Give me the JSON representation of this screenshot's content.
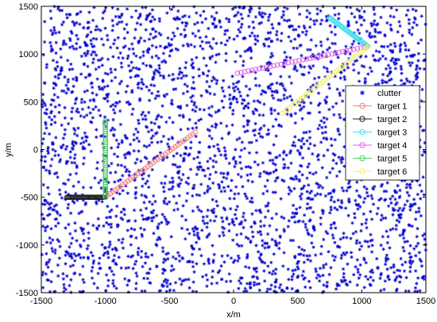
{
  "chart_data": {
    "type": "scatter",
    "xlabel": "x/m",
    "ylabel": "y/m",
    "xlim": [
      -1500,
      1500
    ],
    "ylim": [
      -1500,
      1500
    ],
    "xticks": [
      -1500,
      -1000,
      -500,
      0,
      500,
      1000,
      1500
    ],
    "yticks": [
      -1500,
      -1000,
      -500,
      0,
      500,
      1000,
      1500
    ],
    "x_tick_labels": [
      "-1500",
      "-1000",
      "-500",
      "0",
      "500",
      "1000",
      "1500"
    ],
    "y_tick_labels": [
      "-1500",
      "-1000",
      "-500",
      "0",
      "500",
      "1000",
      "1500"
    ],
    "grid": false,
    "legend_position": "right",
    "clutter": {
      "name": "clutter",
      "marker": "*",
      "color": "#0000cc",
      "count": 3000,
      "distribution": "uniform over axes range"
    },
    "series": [
      {
        "name": "target 1",
        "color": "#f08080",
        "marker": "o",
        "x": [
          -1000,
          -300
        ],
        "y": [
          -500,
          180
        ]
      },
      {
        "name": "target 2",
        "color": "#202020",
        "marker": "o",
        "x": [
          -1300,
          -1000
        ],
        "y": [
          -500,
          -500
        ]
      },
      {
        "name": "target 3",
        "color": "#40e0f0",
        "marker": "o",
        "x": [
          750,
          1050
        ],
        "y": [
          1380,
          1080
        ]
      },
      {
        "name": "target 4",
        "color": "#e060e0",
        "marker": "o",
        "x": [
          1050,
          30
        ],
        "y": [
          1080,
          800
        ]
      },
      {
        "name": "target 5",
        "color": "#50d060",
        "marker": "o",
        "x": [
          -1000,
          -1000
        ],
        "y": [
          -500,
          300
        ]
      },
      {
        "name": "target 6",
        "color": "#f0f070",
        "marker": "o",
        "x": [
          1050,
          380
        ],
        "y": [
          1080,
          380
        ]
      }
    ]
  }
}
